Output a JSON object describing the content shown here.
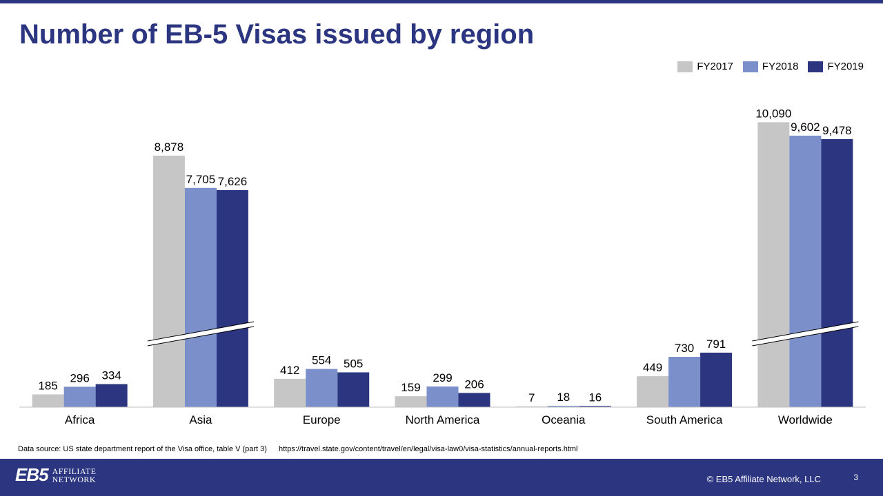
{
  "slide": {
    "title": "Number of EB-5 Visas issued by region",
    "source_text": "Data source: US state department report of the Visa office, table V (part 3)",
    "source_url": "https://travel.state.gov/content/travel/en/legal/visa-law0/visa-statistics/annual-reports.html",
    "copyright": "© EB5  Affiliate Network, LLC",
    "page_number": "3",
    "logo": {
      "mark": "EB5",
      "line1": "AFFILIATE",
      "line2": "NETWORK"
    }
  },
  "colors": {
    "fy2017": "#c6c6c6",
    "fy2018": "#7b8fca",
    "fy2019": "#2b3580",
    "brand": "#2b3580"
  },
  "chart_data": {
    "type": "bar",
    "title": "Number of EB-5 Visas issued by region",
    "categories": [
      "Africa",
      "Asia",
      "Europe",
      "North America",
      "Oceania",
      "South America",
      "Worldwide"
    ],
    "series": [
      {
        "name": "FY2017",
        "values": [
          185,
          8878,
          412,
          159,
          7,
          449,
          10090
        ],
        "labels": [
          "185",
          "8,878",
          "412",
          "159",
          "7",
          "449",
          "10,090"
        ]
      },
      {
        "name": "FY2018",
        "values": [
          296,
          7705,
          554,
          299,
          18,
          730,
          9602
        ],
        "labels": [
          "296",
          "7,705",
          "554",
          "299",
          "18",
          "730",
          "9,602"
        ]
      },
      {
        "name": "FY2019",
        "values": [
          334,
          7626,
          505,
          206,
          16,
          791,
          9478
        ],
        "labels": [
          "334",
          "7,626",
          "505",
          "206",
          "16",
          "791",
          "9,478"
        ]
      }
    ],
    "axis_break": [
      "Asia",
      "Worldwide"
    ],
    "legend_position": "top-right",
    "grid": false,
    "xlabel": "",
    "ylabel": ""
  }
}
